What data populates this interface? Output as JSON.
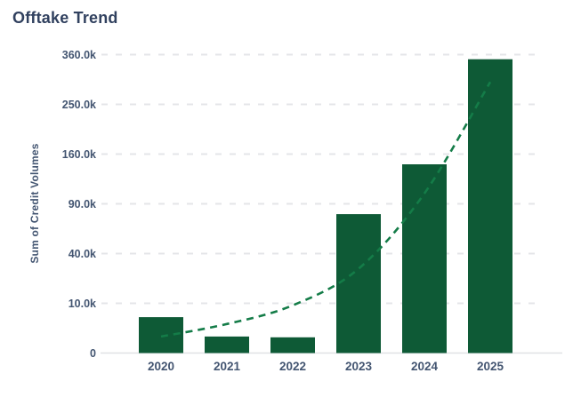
{
  "chart": {
    "title": "Offtake Trend",
    "ylabel": "Sum of Credit Volumes"
  },
  "chart_data": {
    "type": "bar",
    "title": "Offtake Trend",
    "xlabel": "",
    "ylabel": "Sum of Credit Volumes",
    "categories": [
      "2020",
      "2021",
      "2022",
      "2023",
      "2024",
      "2025"
    ],
    "series": [
      {
        "name": "Sum of Credit Volumes",
        "type": "bar",
        "values": [
          5200,
          1100,
          1000,
          78000,
          144000,
          349000
        ]
      },
      {
        "name": "Trend",
        "type": "dashed-line",
        "values": [
          1100,
          3400,
          9200,
          28700,
          103000,
          297000
        ]
      }
    ],
    "y_scale": "sqrt",
    "ylim": [
      0,
      360000
    ],
    "y_ticks": [
      0,
      10000,
      40000,
      90000,
      160000,
      250000,
      360000
    ],
    "y_tick_labels": [
      "0",
      "10.0k",
      "40.0k",
      "90.0k",
      "160.0k",
      "250.0k",
      "360.0k"
    ],
    "grid": "horizontal-dashed",
    "legend": "none",
    "colors": {
      "bar": "#0e5a36",
      "trend_line": "#147c48",
      "grid": "#e4e5e8",
      "axis_line": "#dfe1e5",
      "label_text": "#435571",
      "title_text": "#31415f",
      "background": "#ffffff"
    }
  }
}
